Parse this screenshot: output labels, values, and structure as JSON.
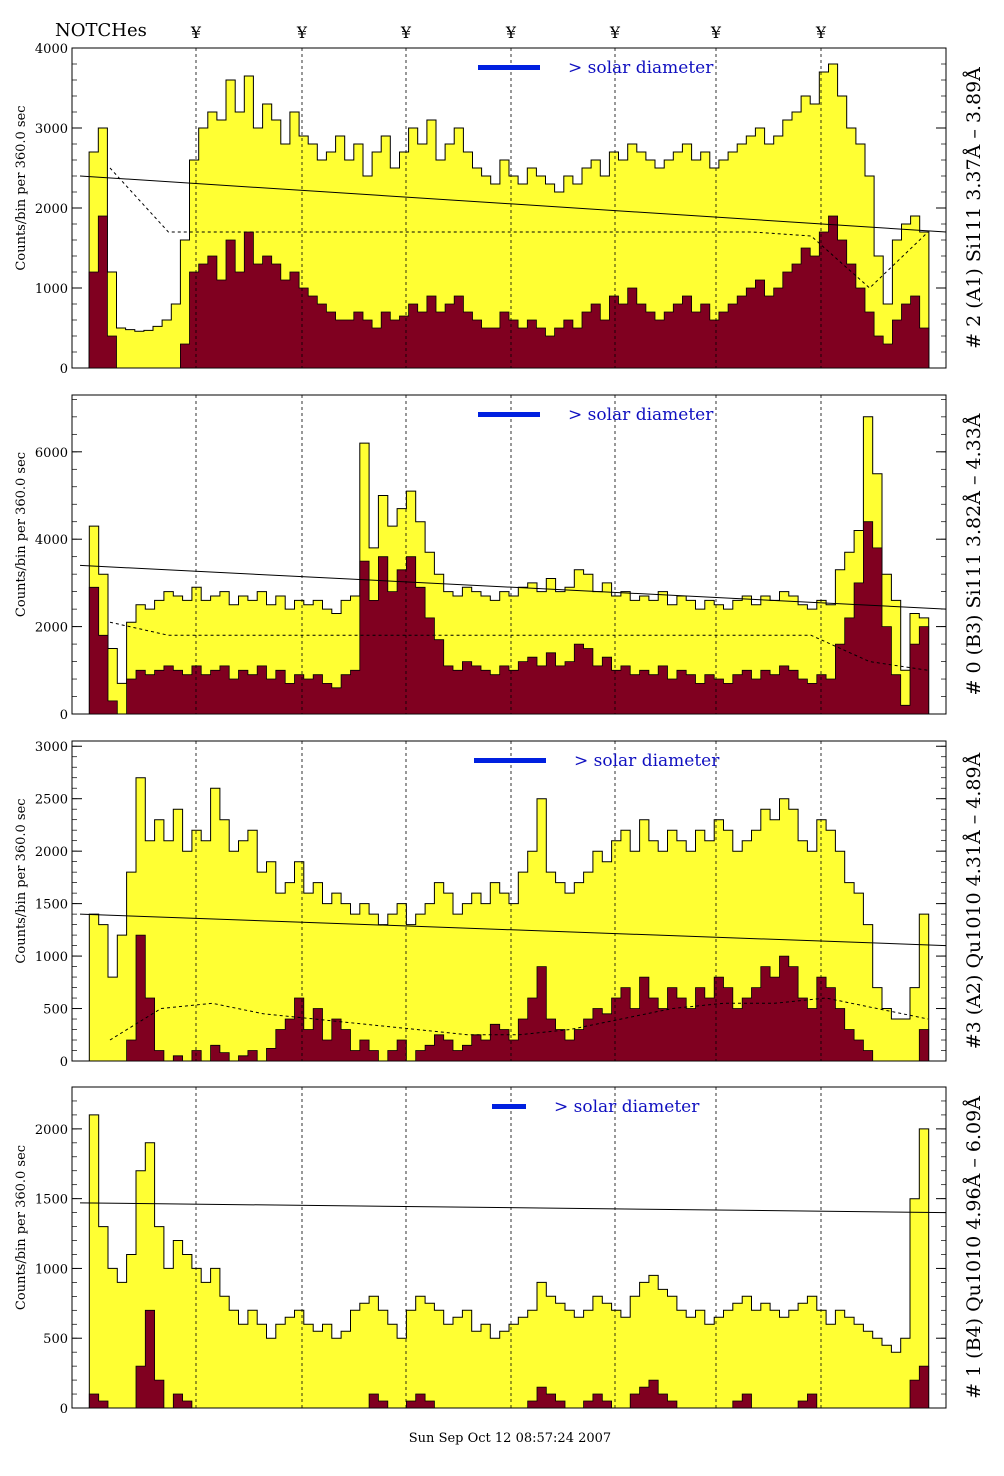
{
  "header": {
    "notches_label": "NOTCHes",
    "notch_symbol": "¥"
  },
  "footer": {
    "timestamp": "Sun Sep Oct 12 08:57:24 2007"
  },
  "colors": {
    "total_fill": "#ffff33",
    "low_fill": "#800020",
    "label_blue": "#1010c0",
    "bar_blue": "#0020e0"
  },
  "chart_data": [
    {
      "type": "bar",
      "title": "# 2 (A1) Si111  3.37Å – 3.89Å",
      "ylabel": "Counts/bin per   360.0 sec",
      "ylim": [
        0,
        4000
      ],
      "yticks": [
        0,
        1000,
        2000,
        3000,
        4000
      ],
      "legend": "> solar diameter",
      "notches": true,
      "series": [
        {
          "name": "total",
          "values": [
            0,
            2700,
            3000,
            1200,
            500,
            480,
            460,
            470,
            520,
            600,
            800,
            1600,
            2600,
            3000,
            3200,
            3100,
            3600,
            3200,
            3650,
            3000,
            3300,
            3100,
            2800,
            3200,
            2900,
            2800,
            2600,
            2700,
            2900,
            2600,
            2800,
            2400,
            2700,
            2900,
            2500,
            2700,
            3000,
            2800,
            3100,
            2600,
            2800,
            3000,
            2700,
            2500,
            2400,
            2300,
            2600,
            2400,
            2300,
            2500,
            2400,
            2300,
            2200,
            2400,
            2300,
            2500,
            2600,
            2400,
            2700,
            2600,
            2800,
            2700,
            2600,
            2500,
            2600,
            2700,
            2800,
            2600,
            2700,
            2500,
            2600,
            2700,
            2800,
            2900,
            3000,
            2800,
            2900,
            3100,
            3200,
            3400,
            3300,
            3700,
            3800,
            3400,
            3000,
            2800,
            2400,
            1400,
            800,
            1600,
            1800,
            1900,
            1700,
            0
          ]
        },
        {
          "name": "low",
          "values": [
            0,
            1200,
            1900,
            400,
            0,
            0,
            0,
            0,
            0,
            0,
            0,
            300,
            1200,
            1300,
            1400,
            1100,
            1600,
            1200,
            1700,
            1300,
            1400,
            1300,
            1100,
            1200,
            1000,
            900,
            800,
            700,
            600,
            600,
            700,
            600,
            500,
            700,
            600,
            650,
            800,
            700,
            900,
            700,
            800,
            900,
            700,
            600,
            500,
            500,
            700,
            600,
            500,
            600,
            500,
            400,
            500,
            600,
            500,
            700,
            800,
            600,
            900,
            800,
            1000,
            800,
            700,
            600,
            700,
            800,
            900,
            700,
            800,
            600,
            700,
            800,
            900,
            1000,
            1100,
            900,
            1000,
            1200,
            1300,
            1500,
            1400,
            1700,
            1900,
            1600,
            1300,
            1000,
            700,
            400,
            300,
            600,
            800,
            900,
            500,
            0
          ]
        }
      ],
      "smooth": [
        2500,
        1700,
        1700,
        1700,
        1700,
        1700,
        1700,
        1700,
        1700,
        1700,
        1700,
        1700,
        1650,
        1000,
        1700
      ],
      "straight": [
        2400,
        1700
      ]
    },
    {
      "type": "bar",
      "title": "# 0 (B3) Si111  3.82Å – 4.33Å",
      "ylabel": "Counts/bin per   360.0 sec",
      "ylim": [
        0,
        7300
      ],
      "yticks": [
        0,
        2000,
        4000,
        6000
      ],
      "legend": "> solar diameter",
      "notches": false,
      "series": [
        {
          "name": "total",
          "values": [
            0,
            4300,
            3200,
            1500,
            700,
            2100,
            2500,
            2400,
            2600,
            2800,
            2700,
            2600,
            2900,
            2600,
            2700,
            2800,
            2500,
            2700,
            2600,
            2800,
            2500,
            2700,
            2400,
            2600,
            2500,
            2600,
            2400,
            2300,
            2600,
            2700,
            6200,
            3800,
            5000,
            4300,
            4700,
            5100,
            4400,
            3700,
            3200,
            2800,
            2700,
            2900,
            2800,
            2700,
            2600,
            2800,
            2700,
            2900,
            3000,
            2800,
            3100,
            2800,
            2900,
            3300,
            3200,
            2800,
            3000,
            2700,
            2800,
            2600,
            2700,
            2600,
            2800,
            2500,
            2700,
            2600,
            2400,
            2600,
            2500,
            2400,
            2600,
            2700,
            2500,
            2700,
            2600,
            2800,
            2700,
            2500,
            2400,
            2600,
            2500,
            3300,
            3700,
            4200,
            6800,
            5500,
            3200,
            2600,
            1000,
            2300,
            2200,
            0
          ]
        },
        {
          "name": "low",
          "values": [
            0,
            2900,
            1800,
            300,
            0,
            800,
            1000,
            900,
            1000,
            1100,
            1000,
            900,
            1100,
            900,
            1000,
            1100,
            800,
            1000,
            900,
            1100,
            800,
            1000,
            700,
            900,
            800,
            900,
            700,
            600,
            900,
            1000,
            3500,
            2600,
            3600,
            2800,
            3300,
            3600,
            2900,
            2200,
            1700,
            1100,
            1000,
            1200,
            1100,
            1000,
            900,
            1100,
            1000,
            1200,
            1300,
            1100,
            1400,
            1100,
            1200,
            1600,
            1500,
            1100,
            1300,
            1000,
            1100,
            900,
            1000,
            900,
            1100,
            800,
            1000,
            900,
            700,
            900,
            800,
            700,
            900,
            1000,
            800,
            1000,
            900,
            1100,
            1000,
            800,
            700,
            900,
            800,
            1600,
            2200,
            3000,
            4400,
            3800,
            2000,
            900,
            200,
            1600,
            2000,
            0
          ]
        }
      ],
      "smooth": [
        2100,
        1800,
        1800,
        1800,
        1800,
        1800,
        1800,
        1800,
        1800,
        1800,
        1800,
        1800,
        1800,
        1200,
        1000
      ],
      "straight": [
        3400,
        2400
      ]
    },
    {
      "type": "bar",
      "title": "#3 (A2) Qu1010  4.31Å – 4.89Å",
      "ylabel": "Counts/bin per   360.0 sec",
      "ylim": [
        0,
        3050
      ],
      "yticks": [
        0,
        500,
        1000,
        1500,
        2000,
        2500,
        3000
      ],
      "legend": "> solar diameter",
      "notches": false,
      "series": [
        {
          "name": "total",
          "values": [
            0,
            1400,
            1300,
            800,
            1200,
            1800,
            2700,
            2100,
            2300,
            2100,
            2400,
            2000,
            2200,
            2100,
            2600,
            2300,
            2000,
            2100,
            2200,
            1800,
            1900,
            1600,
            1700,
            1900,
            1600,
            1700,
            1500,
            1600,
            1500,
            1400,
            1500,
            1400,
            1300,
            1400,
            1500,
            1300,
            1400,
            1500,
            1700,
            1600,
            1400,
            1500,
            1600,
            1500,
            1700,
            1600,
            1500,
            1800,
            2000,
            2500,
            1800,
            1700,
            1600,
            1700,
            1800,
            2000,
            1900,
            2100,
            2200,
            2000,
            2300,
            2100,
            2000,
            2200,
            2100,
            2000,
            2200,
            2100,
            2300,
            2200,
            2000,
            2100,
            2200,
            2400,
            2300,
            2500,
            2400,
            2100,
            2000,
            2300,
            2200,
            2000,
            1700,
            1600,
            1300,
            700,
            500,
            400,
            400,
            700,
            1400,
            0
          ]
        },
        {
          "name": "low",
          "values": [
            0,
            0,
            0,
            0,
            0,
            200,
            1200,
            600,
            100,
            0,
            50,
            0,
            100,
            0,
            150,
            80,
            0,
            50,
            100,
            0,
            120,
            300,
            400,
            600,
            300,
            500,
            200,
            400,
            300,
            100,
            200,
            100,
            0,
            100,
            200,
            0,
            100,
            150,
            250,
            200,
            100,
            150,
            250,
            200,
            350,
            300,
            200,
            400,
            600,
            900,
            400,
            300,
            200,
            300,
            400,
            500,
            450,
            600,
            700,
            500,
            800,
            600,
            500,
            700,
            600,
            500,
            700,
            600,
            800,
            700,
            500,
            600,
            700,
            900,
            800,
            1000,
            900,
            600,
            500,
            800,
            700,
            500,
            300,
            200,
            100,
            0,
            0,
            0,
            0,
            0,
            300,
            0
          ]
        }
      ],
      "smooth": [
        200,
        500,
        550,
        450,
        400,
        350,
        300,
        250,
        250,
        300,
        400,
        500,
        550,
        550,
        600,
        500,
        400
      ],
      "straight": [
        1400,
        1100
      ]
    },
    {
      "type": "bar",
      "title": "# 1 (B4) Qu1010 4.96Å – 6.09Å",
      "ylabel": "Counts/bin per   360.0 sec",
      "ylim": [
        0,
        2300
      ],
      "yticks": [
        0,
        500,
        1000,
        1500,
        2000
      ],
      "legend": "> solar diameter",
      "notches": false,
      "series": [
        {
          "name": "total",
          "values": [
            0,
            2100,
            1300,
            1000,
            900,
            1100,
            1700,
            1900,
            1300,
            1000,
            1200,
            1100,
            1000,
            900,
            1000,
            800,
            700,
            600,
            700,
            600,
            500,
            600,
            650,
            700,
            600,
            550,
            600,
            500,
            550,
            700,
            750,
            800,
            700,
            600,
            500,
            700,
            800,
            750,
            700,
            600,
            650,
            700,
            550,
            600,
            500,
            550,
            600,
            650,
            700,
            900,
            800,
            750,
            700,
            650,
            700,
            800,
            750,
            700,
            650,
            800,
            900,
            950,
            850,
            800,
            700,
            650,
            700,
            600,
            650,
            700,
            750,
            800,
            700,
            750,
            700,
            650,
            700,
            750,
            800,
            700,
            600,
            700,
            650,
            600,
            550,
            500,
            450,
            400,
            500,
            1500,
            2000,
            0
          ]
        },
        {
          "name": "low",
          "values": [
            0,
            100,
            50,
            0,
            0,
            0,
            300,
            700,
            200,
            0,
            100,
            50,
            0,
            0,
            0,
            0,
            0,
            0,
            0,
            0,
            0,
            0,
            0,
            0,
            0,
            0,
            0,
            0,
            0,
            0,
            0,
            100,
            50,
            0,
            0,
            50,
            100,
            50,
            0,
            0,
            0,
            0,
            0,
            0,
            0,
            0,
            0,
            0,
            50,
            150,
            100,
            50,
            0,
            0,
            50,
            100,
            50,
            0,
            0,
            100,
            150,
            200,
            100,
            50,
            0,
            0,
            0,
            0,
            0,
            0,
            50,
            100,
            0,
            0,
            0,
            0,
            0,
            50,
            100,
            0,
            0,
            0,
            0,
            0,
            0,
            0,
            0,
            0,
            0,
            200,
            300,
            0
          ]
        }
      ],
      "smooth": [],
      "straight": [
        1470,
        1400
      ]
    }
  ]
}
